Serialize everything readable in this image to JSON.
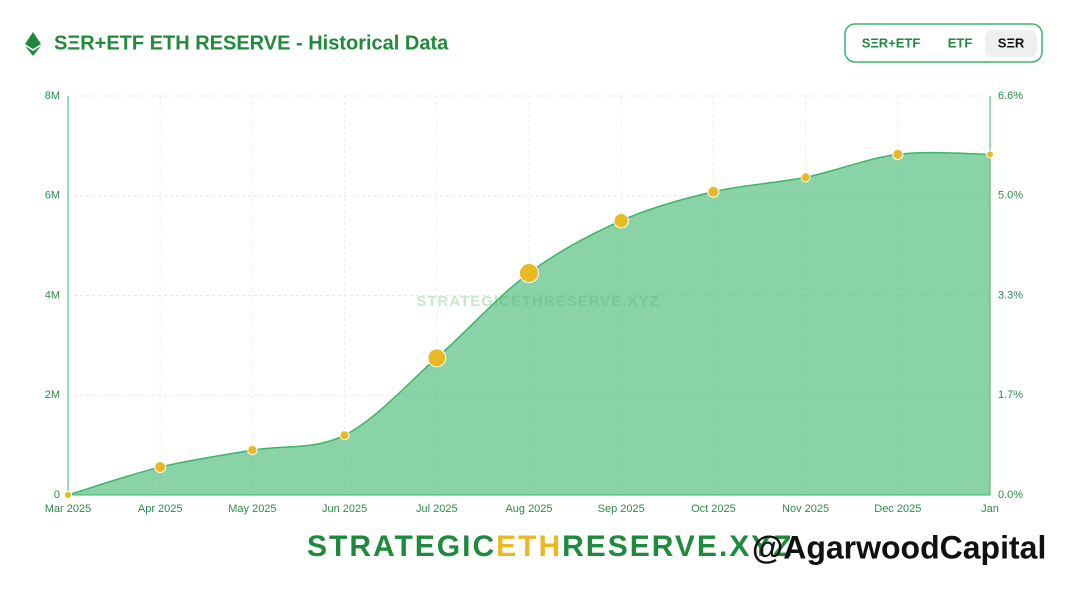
{
  "header": {
    "title": "SΞR+ETF ETH RESERVE - Historical Data",
    "tabs": [
      "SΞR+ETF",
      "ETF",
      "SΞR"
    ],
    "active_tab": 2
  },
  "watermark": "STRATEGICETHRESERVE.XYZ",
  "footer": {
    "logo_parts": [
      "STRATEGIC",
      "ETH",
      "RESERVE.XYZ"
    ],
    "credit": "@AgarwoodCapital"
  },
  "chart_data": {
    "type": "area",
    "categories": [
      "Mar 2025",
      "Apr 2025",
      "May 2025",
      "Jun 2025",
      "Jul 2025",
      "Aug 2025",
      "Sep 2025",
      "Oct 2025",
      "Nov 2025",
      "Dec 2025",
      "Jan"
    ],
    "series": [
      {
        "color": "#3cb56b",
        "values": [
          0,
          560000,
          900000,
          1200000,
          2750000,
          4450000,
          5500000,
          6080000,
          6370000,
          6830000,
          6830000
        ]
      }
    ],
    "point_color": "#e8b923",
    "ylim": [
      0,
      8000000
    ],
    "yticks": [
      {
        "value": 0,
        "label": "0"
      },
      {
        "value": 2000000,
        "label": "2M"
      },
      {
        "value": 4000000,
        "label": "4M"
      },
      {
        "value": 6000000,
        "label": "6M"
      },
      {
        "value": 8000000,
        "label": "8M"
      }
    ],
    "y2lim": [
      0,
      6.6
    ],
    "y2ticks": [
      {
        "value": 0,
        "label": "0.0%"
      },
      {
        "value": 1.65,
        "label": "1.7%"
      },
      {
        "value": 3.3,
        "label": "3.3%"
      },
      {
        "value": 4.95,
        "label": "5.0%"
      },
      {
        "value": 6.6,
        "label": "6.6%"
      }
    ],
    "grid": true
  }
}
